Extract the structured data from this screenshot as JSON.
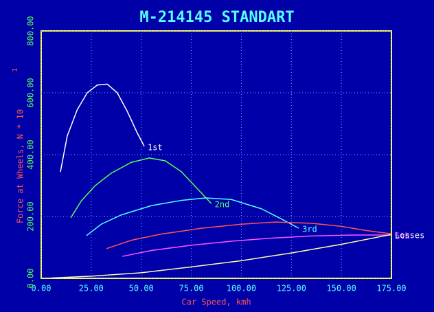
{
  "chart_data": {
    "type": "line",
    "title": "M-214145 STANDART",
    "x_label": "Car Speed, kmh",
    "y_label": "Force at Wheels, N * 10",
    "y_label_exponent": "1",
    "xlim": [
      0,
      175
    ],
    "ylim": [
      0,
      800
    ],
    "xticks": [
      {
        "value": 0,
        "label": "0.00"
      },
      {
        "value": 25,
        "label": "25.00"
      },
      {
        "value": 50,
        "label": "50.00"
      },
      {
        "value": 75,
        "label": "75.00"
      },
      {
        "value": 100,
        "label": "100.00"
      },
      {
        "value": 125,
        "label": "125.00"
      },
      {
        "value": 150,
        "label": "150.00"
      },
      {
        "value": 175,
        "label": "175.00"
      }
    ],
    "yticks": [
      {
        "value": 0,
        "label": "0.00"
      },
      {
        "value": 200,
        "label": "200.00"
      },
      {
        "value": 400,
        "label": "400.00"
      },
      {
        "value": 600,
        "label": "600.00"
      },
      {
        "value": 800,
        "label": "800.00"
      }
    ],
    "grid": true,
    "series": [
      {
        "name": "1st",
        "color": "#ffffff",
        "x": [
          9.6,
          13,
          18,
          23,
          28,
          33,
          38,
          43,
          48,
          51.5
        ],
        "values": [
          344,
          460,
          545,
          600,
          625,
          628,
          600,
          540,
          470,
          427
        ]
      },
      {
        "name": "2nd",
        "color": "#55ff55",
        "x": [
          14.8,
          20,
          27,
          35,
          45,
          54,
          62,
          70,
          78,
          85
        ],
        "values": [
          196,
          250,
          300,
          340,
          375,
          389,
          380,
          345,
          290,
          242
        ]
      },
      {
        "name": "3rd",
        "color": "#55ffff",
        "x": [
          22.6,
          30,
          40,
          55,
          70,
          82,
          95,
          110,
          120,
          128.7
        ],
        "values": [
          138,
          175,
          205,
          235,
          252,
          260,
          255,
          225,
          192,
          162
        ]
      },
      {
        "color": "#ff5555",
        "x": [
          32.6,
          45,
          60,
          80,
          100,
          117,
          135,
          150,
          162,
          175
        ],
        "values": [
          96,
          123,
          143,
          162,
          175,
          182,
          178,
          168,
          155,
          144
        ]
      },
      {
        "name": "5th",
        "color": "#ff55ff",
        "x": [
          40.5,
          55,
          75,
          95,
          115,
          135,
          155,
          175
        ],
        "values": [
          71,
          90,
          107,
          120,
          130,
          137,
          140,
          140
        ]
      },
      {
        "name": "Losses",
        "color": "#ffffaa",
        "x": [
          5,
          25,
          50,
          75,
          100,
          125,
          150,
          175
        ],
        "values": [
          1,
          7,
          18,
          37,
          57,
          82,
          110,
          142
        ]
      }
    ]
  }
}
